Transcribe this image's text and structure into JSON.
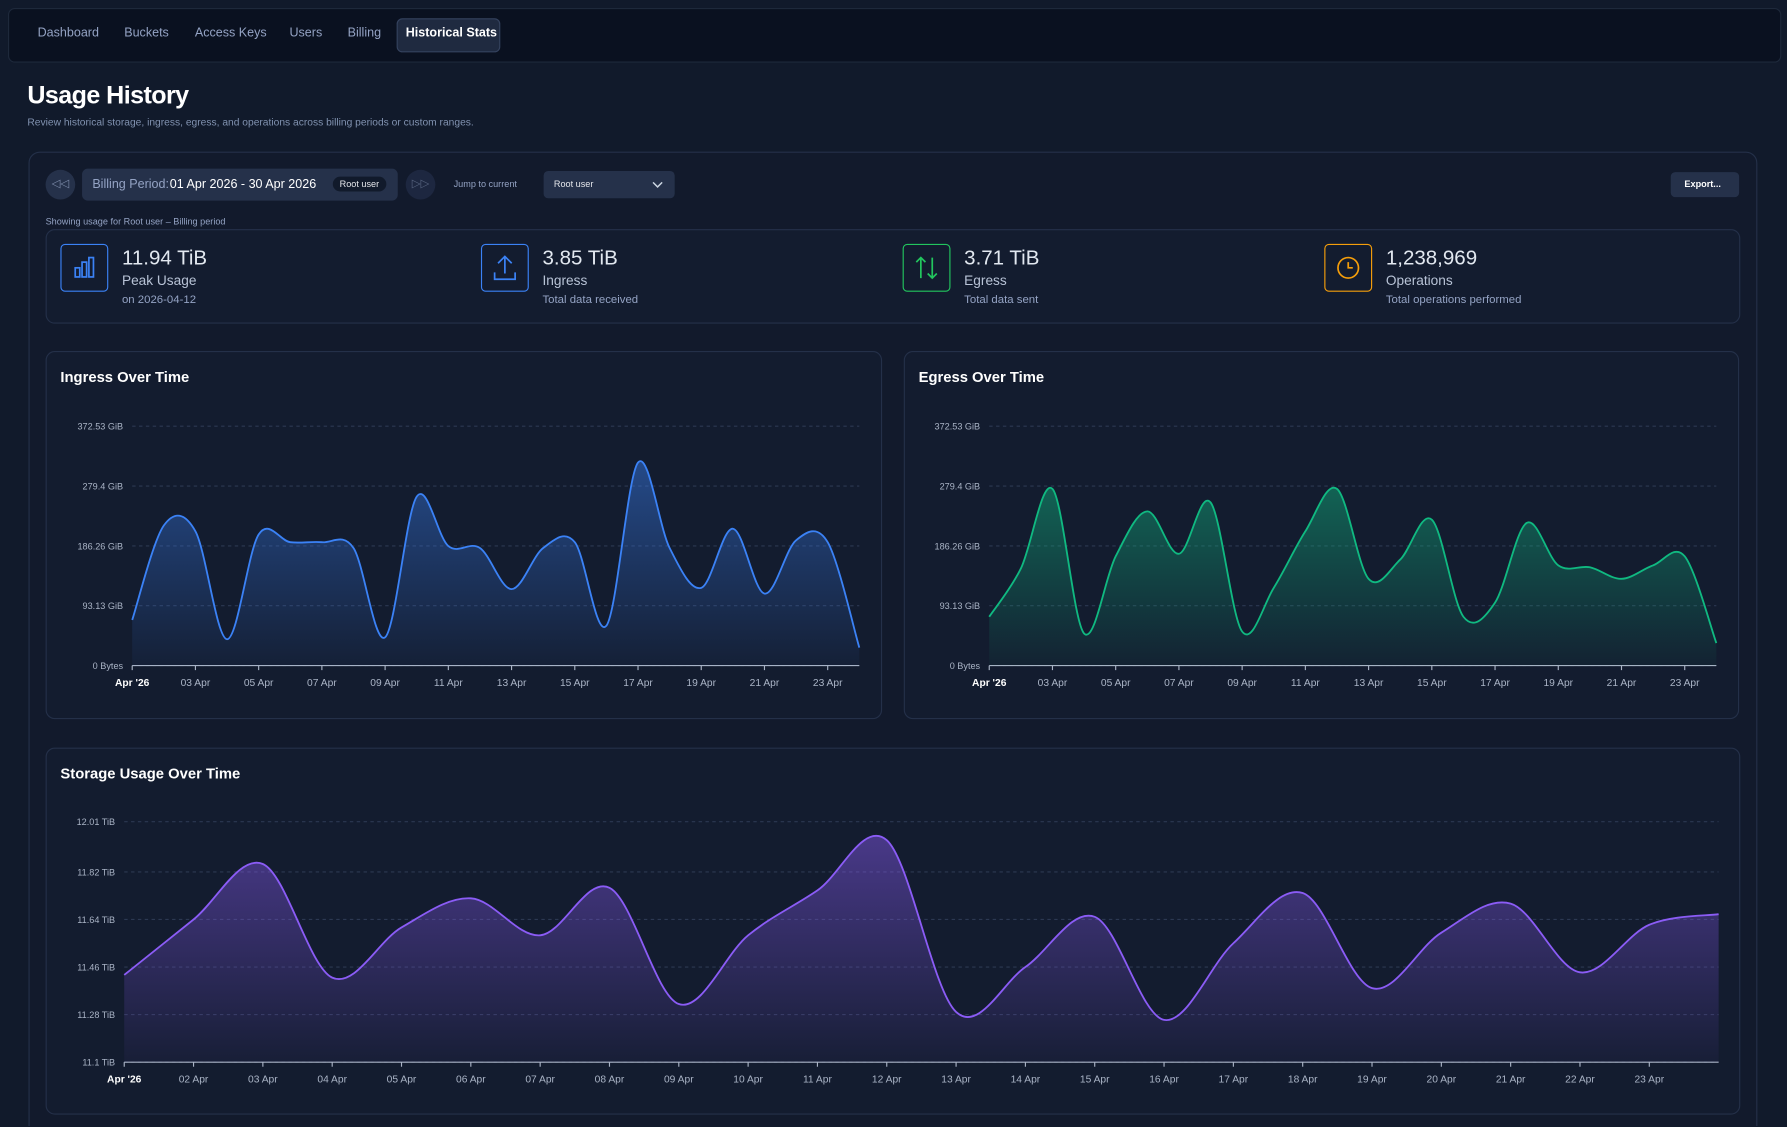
{
  "nav": {
    "tabs": [
      "Dashboard",
      "Buckets",
      "Access Keys",
      "Users",
      "Billing",
      "Historical Stats"
    ],
    "active": 5
  },
  "header": {
    "title": "Usage History",
    "subtitle": "Review historical storage, ingress, egress, and operations across billing periods or custom ranges."
  },
  "controls": {
    "period_label": "Billing Period:",
    "period": "01 Apr 2026 - 30 Apr 2026",
    "period_user": "Root user",
    "jump": "Jump to current",
    "select": "Root user",
    "export": "Export...",
    "showing": "Showing usage for Root user – Billing period"
  },
  "stats": [
    {
      "value": "11.94 TiB",
      "label": "Peak Usage",
      "sub": "on 2026-04-12"
    },
    {
      "value": "3.85 TiB",
      "label": "Ingress",
      "sub": "Total data received"
    },
    {
      "value": "3.71 TiB",
      "label": "Egress",
      "sub": "Total data sent"
    },
    {
      "value": "1,238,969",
      "label": "Operations",
      "sub": "Total operations performed"
    }
  ],
  "chart_data": [
    {
      "type": "area",
      "title": "Ingress Over Time",
      "color": "#3b82f6",
      "categories": [
        "Apr '26",
        null,
        "03 Apr",
        null,
        "05 Apr",
        null,
        "07 Apr",
        null,
        "09 Apr",
        null,
        "11 Apr",
        null,
        "13 Apr",
        null,
        "15 Apr",
        null,
        "17 Apr",
        null,
        "19 Apr",
        null,
        "21 Apr",
        null,
        "23 Apr",
        null
      ],
      "series": [
        {
          "name": "Ingress",
          "color": "#3b82f6",
          "values": [
            71,
            218,
            209,
            41,
            204,
            192,
            192,
            183,
            44,
            263,
            186,
            183,
            119,
            183,
            192,
            62,
            316,
            183,
            121,
            213,
            112,
            195,
            192,
            28
          ]
        }
      ],
      "ylim": [
        0,
        372.53
      ],
      "yticks": [
        {
          "value": 0,
          "label": "0 Bytes"
        },
        {
          "value": 93.13,
          "label": "93.13 GiB"
        },
        {
          "value": 186.26,
          "label": "186.26 GiB"
        },
        {
          "value": 279.4,
          "label": "279.4 GiB"
        },
        {
          "value": 372.53,
          "label": "372.53 GiB"
        }
      ],
      "grid": true
    },
    {
      "type": "area",
      "title": "Egress Over Time",
      "color": "#10b981",
      "categories": [
        "Apr '26",
        null,
        "03 Apr",
        null,
        "05 Apr",
        null,
        "07 Apr",
        null,
        "09 Apr",
        null,
        "11 Apr",
        null,
        "13 Apr",
        null,
        "15 Apr",
        null,
        "17 Apr",
        null,
        "19 Apr",
        null,
        "21 Apr",
        null,
        "23 Apr",
        null
      ],
      "series": [
        {
          "name": "Egress",
          "color": "#10b981",
          "values": [
            76,
            151,
            275,
            50,
            170,
            240,
            174,
            254,
            53,
            121,
            209,
            275,
            135,
            165,
            227,
            76,
            98,
            222,
            156,
            153,
            135,
            156,
            170,
            35
          ]
        }
      ],
      "ylim": [
        0,
        372.53
      ],
      "yticks": [
        {
          "value": 0,
          "label": "0 Bytes"
        },
        {
          "value": 93.13,
          "label": "93.13 GiB"
        },
        {
          "value": 186.26,
          "label": "186.26 GiB"
        },
        {
          "value": 279.4,
          "label": "279.4 GiB"
        },
        {
          "value": 372.53,
          "label": "372.53 GiB"
        }
      ],
      "grid": true
    },
    {
      "type": "area",
      "title": "Storage Usage Over Time",
      "color": "#8b5cf6",
      "categories": [
        "Apr '26",
        "02 Apr",
        "03 Apr",
        "04 Apr",
        "05 Apr",
        "06 Apr",
        "07 Apr",
        "08 Apr",
        "09 Apr",
        "10 Apr",
        "11 Apr",
        "12 Apr",
        "13 Apr",
        "14 Apr",
        "15 Apr",
        "16 Apr",
        "17 Apr",
        "18 Apr",
        "19 Apr",
        "20 Apr",
        "21 Apr",
        "22 Apr",
        "23 Apr",
        null
      ],
      "series": [
        {
          "name": "Storage",
          "color": "#8b5cf6",
          "values": [
            11.43,
            11.64,
            11.85,
            11.42,
            11.61,
            11.72,
            11.58,
            11.76,
            11.32,
            11.58,
            11.75,
            11.94,
            11.29,
            11.46,
            11.65,
            11.26,
            11.55,
            11.74,
            11.38,
            11.59,
            11.7,
            11.44,
            11.62,
            11.66
          ]
        }
      ],
      "ylim": [
        11.1,
        12.01
      ],
      "yticks": [
        {
          "value": 11.1,
          "label": "11.1 TiB"
        },
        {
          "value": 11.28,
          "label": "11.28 TiB"
        },
        {
          "value": 11.46,
          "label": "11.46 TiB"
        },
        {
          "value": 11.64,
          "label": "11.64 TiB"
        },
        {
          "value": 11.82,
          "label": "11.82 TiB"
        },
        {
          "value": 12.01,
          "label": "12.01 TiB"
        }
      ],
      "grid": true
    }
  ]
}
